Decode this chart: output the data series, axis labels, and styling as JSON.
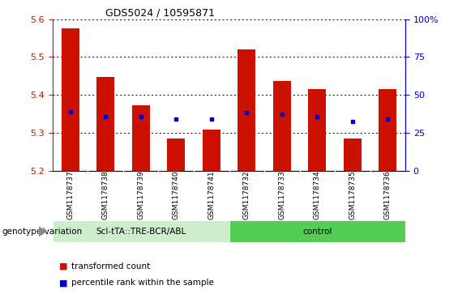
{
  "title": "GDS5024 / 10595871",
  "samples": [
    "GSM1178737",
    "GSM1178738",
    "GSM1178739",
    "GSM1178740",
    "GSM1178741",
    "GSM1178732",
    "GSM1178733",
    "GSM1178734",
    "GSM1178735",
    "GSM1178736"
  ],
  "transformed_count": [
    5.575,
    5.447,
    5.372,
    5.284,
    5.308,
    5.52,
    5.437,
    5.415,
    5.284,
    5.415
  ],
  "percentile_rank": [
    5.355,
    5.343,
    5.343,
    5.335,
    5.335,
    5.353,
    5.348,
    5.343,
    5.33,
    5.335
  ],
  "group1_label": "Scl-tTA::TRE-BCR/ABL",
  "group2_label": "control",
  "group1_count": 5,
  "group2_count": 5,
  "ylim_left": [
    5.2,
    5.6
  ],
  "ylim_right": [
    0,
    100
  ],
  "yticks_left": [
    5.2,
    5.3,
    5.4,
    5.5,
    5.6
  ],
  "yticks_right": [
    0,
    25,
    50,
    75,
    100
  ],
  "bar_color": "#cc1100",
  "dot_color": "#0000cc",
  "group1_bg": "#cceecc",
  "group2_bg": "#55cc55",
  "xlabel_row_bg": "#cccccc",
  "legend_red_label": "transformed count",
  "legend_blue_label": "percentile rank within the sample",
  "genotype_label": "genotype/variation",
  "bar_width": 0.5
}
